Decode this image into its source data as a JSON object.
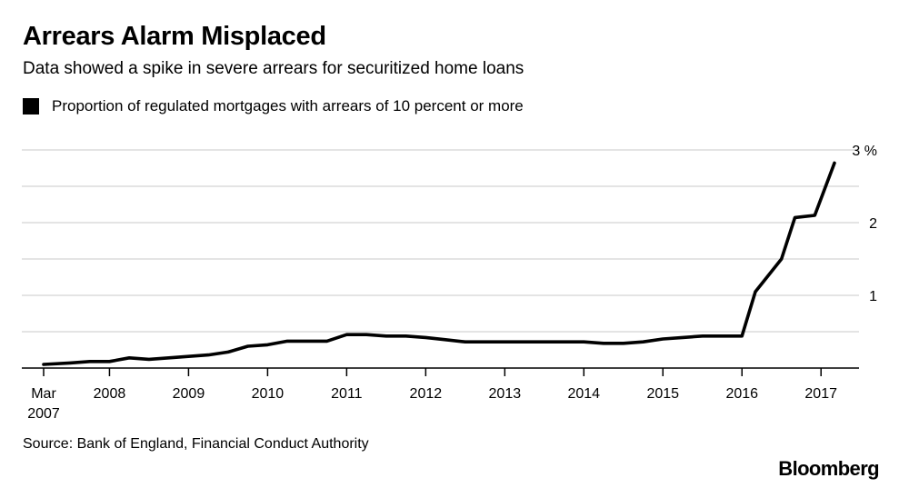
{
  "chart_data": {
    "type": "line",
    "title": "Arrears Alarm Misplaced",
    "subtitle": "Data showed a spike in severe arrears for securitized home loans",
    "legend": [
      "Proportion of regulated mortgages with arrears of 10 percent or more"
    ],
    "legend_position": "top-left",
    "source": "Source: Bank of England, Financial Conduct Authority",
    "brand": "Bloomberg",
    "xlabel": "",
    "ylabel": "",
    "grid": true,
    "ylim": [
      0,
      3
    ],
    "xlim": [
      2007.167,
      2017.3
    ],
    "y_ticks": [
      {
        "value": 0.5,
        "label": ""
      },
      {
        "value": 1,
        "label": "1"
      },
      {
        "value": 1.5,
        "label": ""
      },
      {
        "value": 2,
        "label": "2"
      },
      {
        "value": 2.5,
        "label": ""
      },
      {
        "value": 3,
        "label": "3 %"
      }
    ],
    "x_ticks": [
      {
        "value": 2007.167,
        "label": "Mar",
        "sublabel": "2007"
      },
      {
        "value": 2008,
        "label": "2008"
      },
      {
        "value": 2009,
        "label": "2009"
      },
      {
        "value": 2010,
        "label": "2010"
      },
      {
        "value": 2011,
        "label": "2011"
      },
      {
        "value": 2012,
        "label": "2012"
      },
      {
        "value": 2013,
        "label": "2013"
      },
      {
        "value": 2014,
        "label": "2014"
      },
      {
        "value": 2015,
        "label": "2015"
      },
      {
        "value": 2016,
        "label": "2016"
      },
      {
        "value": 2017,
        "label": "2017"
      }
    ],
    "series": [
      {
        "name": "Proportion of regulated mortgages with arrears of 10 percent or more",
        "x": [
          2007.167,
          2007.5,
          2007.75,
          2008.0,
          2008.25,
          2008.5,
          2008.75,
          2009.0,
          2009.25,
          2009.5,
          2009.75,
          2010.0,
          2010.25,
          2010.5,
          2010.75,
          2011.0,
          2011.25,
          2011.5,
          2011.75,
          2012.0,
          2012.25,
          2012.5,
          2012.75,
          2013.0,
          2013.25,
          2013.5,
          2013.75,
          2014.0,
          2014.25,
          2014.5,
          2014.75,
          2015.0,
          2015.25,
          2015.5,
          2015.75,
          2016.0,
          2016.17,
          2016.5,
          2016.67,
          2016.92,
          2017.17
        ],
        "values": [
          0.05,
          0.07,
          0.09,
          0.09,
          0.14,
          0.12,
          0.14,
          0.16,
          0.18,
          0.22,
          0.3,
          0.32,
          0.37,
          0.37,
          0.37,
          0.46,
          0.46,
          0.44,
          0.44,
          0.42,
          0.39,
          0.36,
          0.36,
          0.36,
          0.36,
          0.36,
          0.36,
          0.36,
          0.34,
          0.34,
          0.36,
          0.4,
          0.42,
          0.44,
          0.44,
          0.44,
          1.05,
          1.5,
          2.07,
          2.1,
          2.82
        ]
      }
    ]
  }
}
